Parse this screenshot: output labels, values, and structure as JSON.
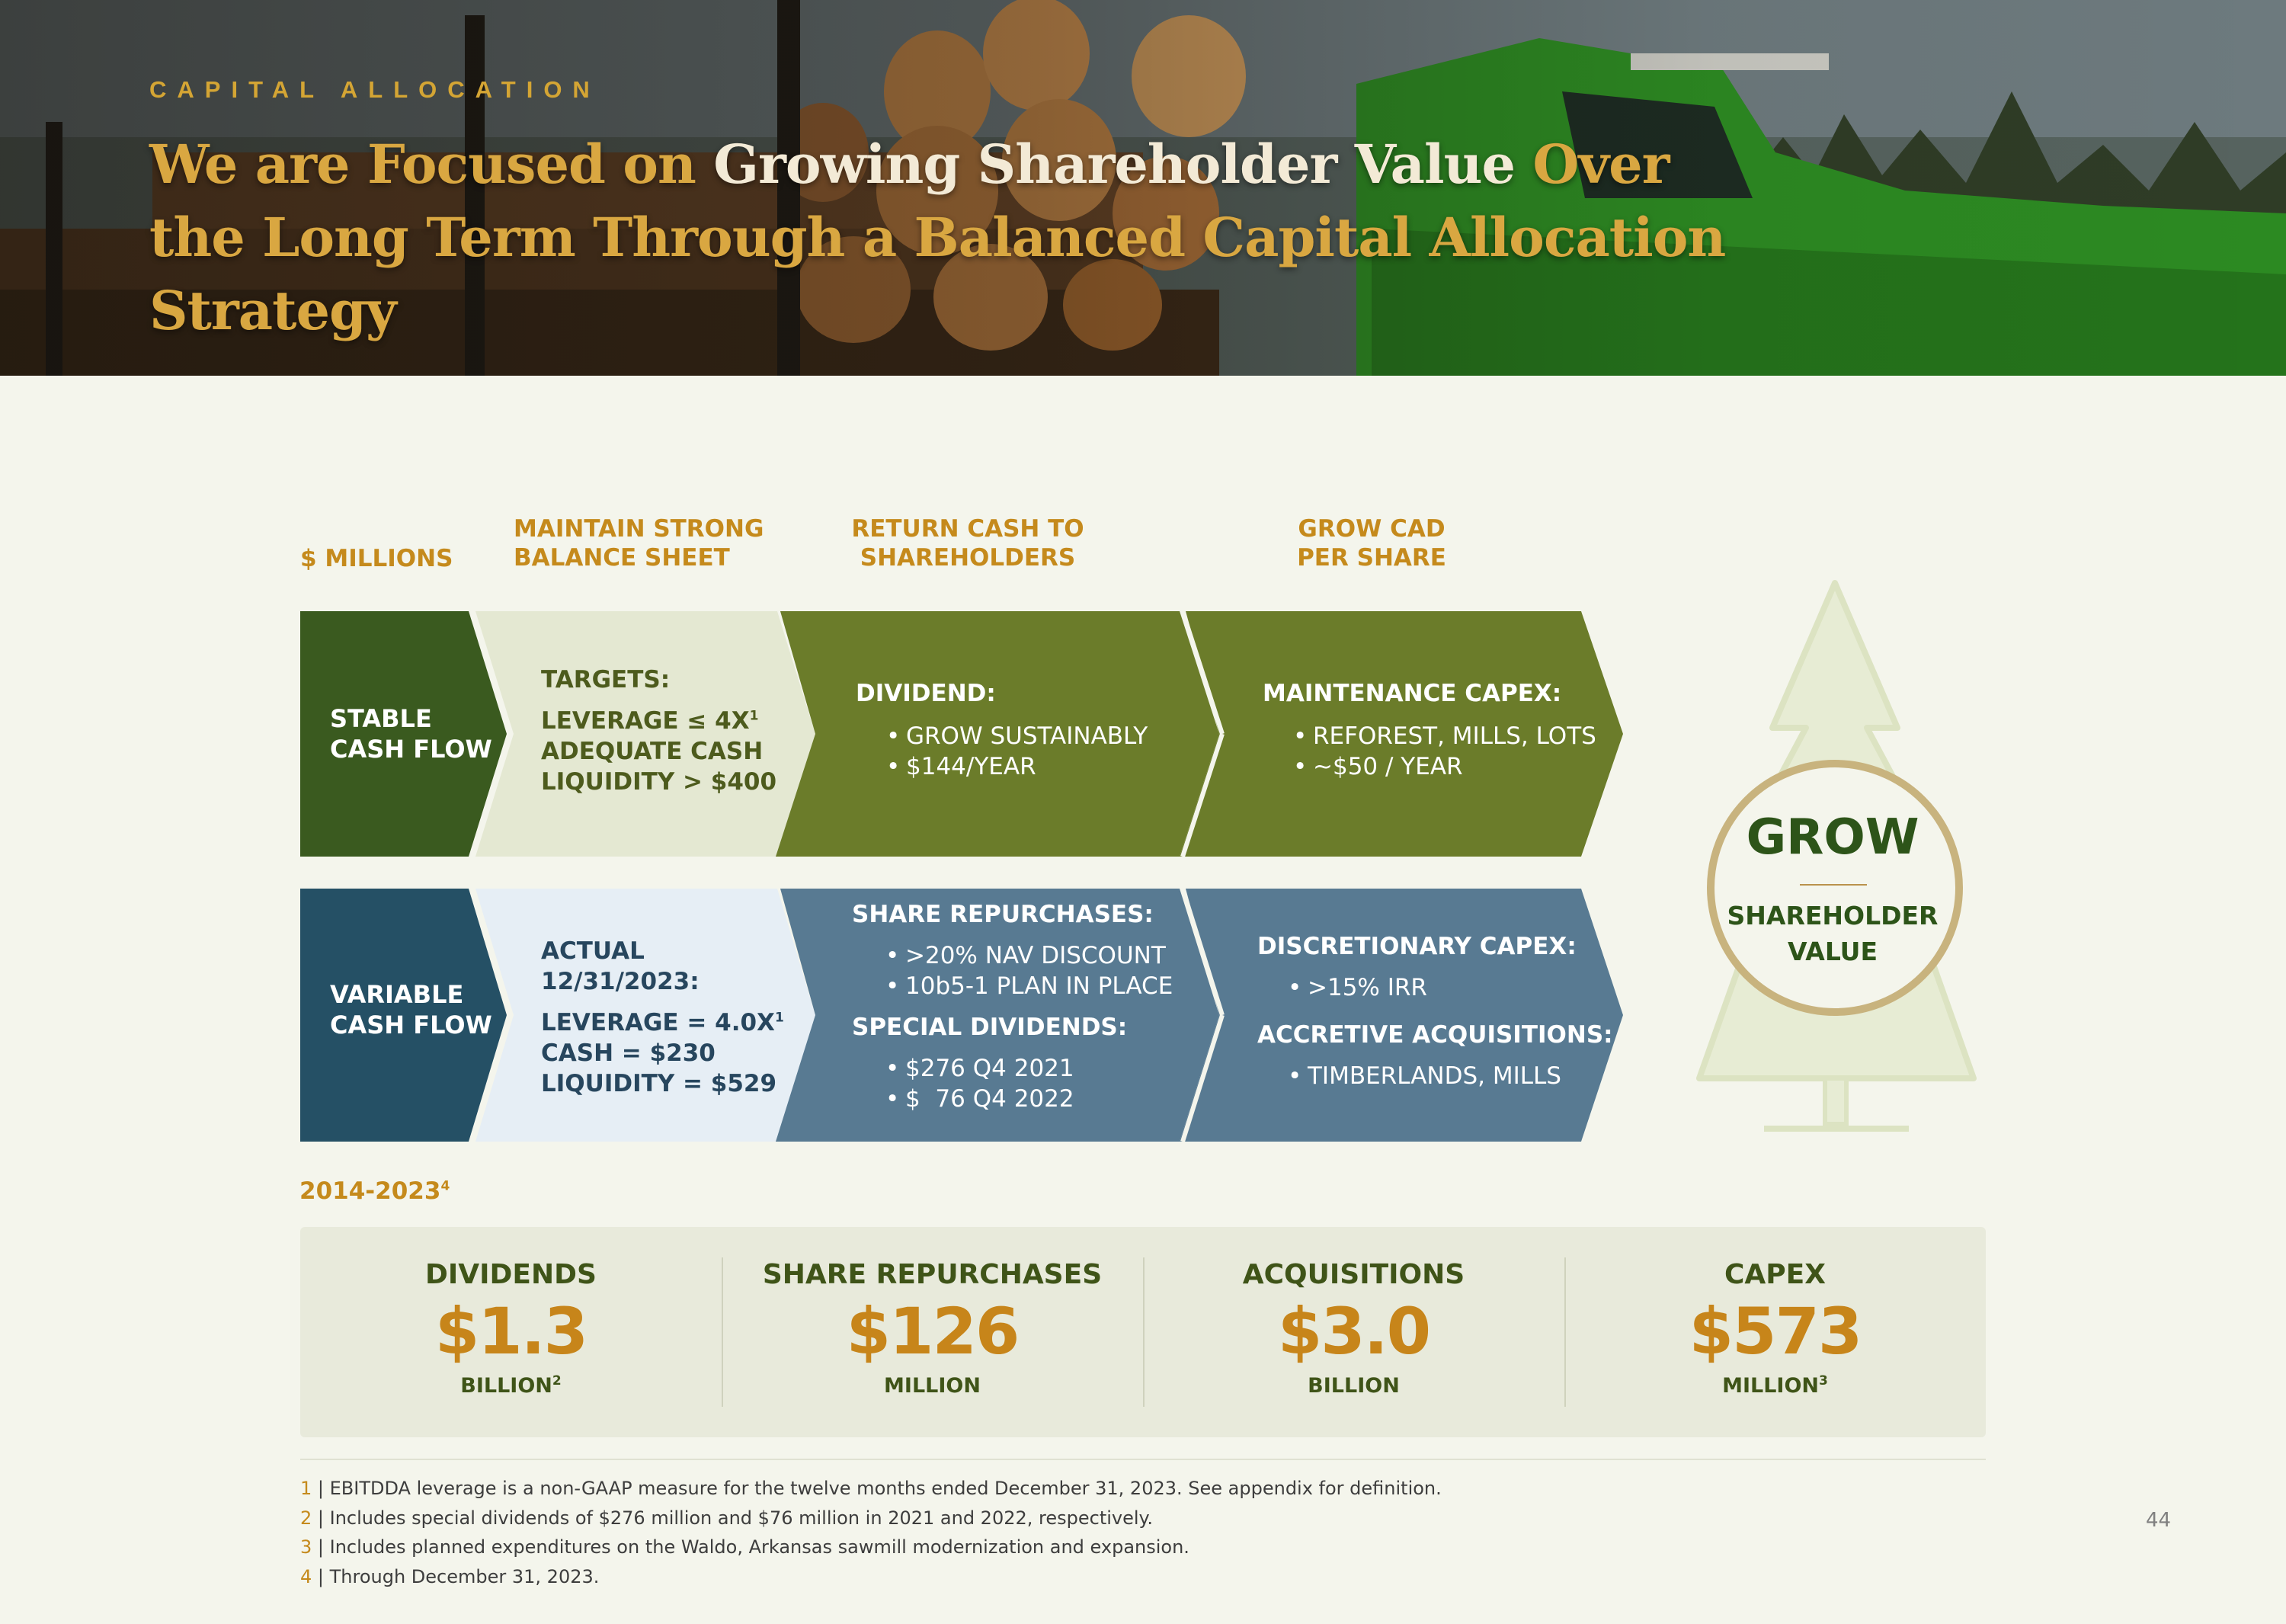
{
  "header": {
    "eyebrow": "CAPITAL ALLOCATION",
    "title_segments": [
      {
        "text": "We are Focused on ",
        "tone": "gold"
      },
      {
        "text": "Growing Shareholder Value",
        "tone": "white"
      },
      {
        "text": " Over the Long Term Through a Balanced Capital Allocation Strategy",
        "tone": "gold"
      }
    ]
  },
  "columns": {
    "units": "$ MILLIONS",
    "col1": [
      "MAINTAIN STRONG",
      "BALANCE SHEET"
    ],
    "col2": [
      "RETURN CASH TO",
      "SHAREHOLDERS"
    ],
    "col3": [
      "GROW CAD",
      "PER SHARE"
    ]
  },
  "stable_row": {
    "label": [
      "STABLE",
      "CASH FLOW"
    ],
    "targets_title": "TARGETS:",
    "targets_lines": [
      "LEVERAGE ≤ 4X",
      "ADEQUATE CASH",
      "LIQUIDITY > $400"
    ],
    "targets_sup": "1",
    "dividend_title": "DIVIDEND:",
    "dividend_items": [
      "GROW SUSTAINABLY",
      "$144/YEAR"
    ],
    "capex_title": "MAINTENANCE CAPEX:",
    "capex_items": [
      "REFOREST, MILLS, LOTS",
      "~$50 / YEAR"
    ]
  },
  "variable_row": {
    "label": [
      "VARIABLE",
      "CASH FLOW"
    ],
    "actual_title": [
      "ACTUAL",
      "12/31/2023:"
    ],
    "actual_lines": [
      "LEVERAGE = 4.0X",
      "CASH = $230",
      "LIQUIDITY = $529"
    ],
    "actual_sup": "1",
    "repurchase_title": "SHARE REPURCHASES:",
    "repurchase_items": [
      ">20% NAV DISCOUNT",
      "10b5-1 PLAN IN PLACE"
    ],
    "special_title": "SPECIAL DIVIDENDS:",
    "special_items": [
      "$276 Q4 2021",
      "$  76 Q4 2022"
    ],
    "disc_title": "DISCRETIONARY CAPEX:",
    "disc_items": [
      ">15% IRR"
    ],
    "acq_title": "ACCRETIVE ACQUISITIONS:",
    "acq_items": [
      "TIMBERLANDS, MILLS"
    ]
  },
  "tree": {
    "word": "GROW",
    "sub": [
      "SHAREHOLDER",
      "VALUE"
    ]
  },
  "period": {
    "label": "2014-2023",
    "sup": "4"
  },
  "stats": [
    {
      "label": "DIVIDENDS",
      "value": "$1.3",
      "unit": "BILLION",
      "sup": "2"
    },
    {
      "label": "SHARE REPURCHASES",
      "value": "$126",
      "unit": "MILLION",
      "sup": ""
    },
    {
      "label": "ACQUISITIONS",
      "value": "$3.0",
      "unit": "BILLION",
      "sup": ""
    },
    {
      "label": "CAPEX",
      "value": "$573",
      "unit": "MILLION",
      "sup": "3"
    }
  ],
  "footnotes": [
    {
      "num": "1",
      "text": " | EBITDDA leverage is a non-GAAP measure for the twelve months ended December 31, 2023. See appendix for definition."
    },
    {
      "num": "2",
      "text": " | Includes special dividends of $276 million and $76 million in 2021 and 2022, respectively."
    },
    {
      "num": "3",
      "text": " | Includes planned expenditures on the Waldo, Arkansas sawmill modernization and expansion."
    },
    {
      "num": "4",
      "text": " | Through December 31, 2023."
    }
  ],
  "page_number": "44",
  "colors": {
    "gold": "#d9a741",
    "dark_green": "#3a5a1f",
    "olive": "#6b7c2a",
    "pale_green": "#e4e8d2",
    "dark_teal": "#255065",
    "slate_blue": "#587a92",
    "pale_blue": "#e6eef5",
    "value_orange": "#c7851a"
  }
}
